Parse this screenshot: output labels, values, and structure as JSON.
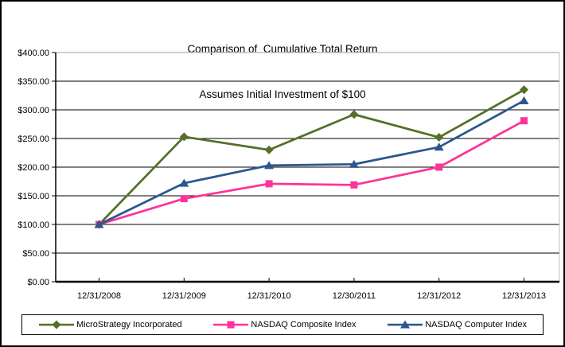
{
  "title": {
    "line1": "Comparison of  Cumulative Total Return",
    "line2": "Assumes Initial Investment of $100"
  },
  "chart_data": {
    "type": "line",
    "categories": [
      "12/31/2008",
      "12/31/2009",
      "12/31/2010",
      "12/30/2011",
      "12/31/2012",
      "12/31/2013"
    ],
    "series": [
      {
        "name": "MicroStrategy Incorporated",
        "color": "#547028",
        "marker": "diamond",
        "values": [
          100,
          253,
          230,
          292,
          252,
          335
        ]
      },
      {
        "name": "NASDAQ Composite Index",
        "color": "#FF3399",
        "marker": "square",
        "values": [
          100,
          145,
          171,
          169,
          200,
          281
        ]
      },
      {
        "name": "NASDAQ Computer Index",
        "color": "#2B578C",
        "marker": "triangle",
        "values": [
          100,
          172,
          203,
          205,
          235,
          316
        ]
      }
    ],
    "title": "Comparison of  Cumulative Total Return — Assumes Initial Investment of $100",
    "xlabel": "",
    "ylabel": "",
    "ylim": [
      0,
      400
    ],
    "y_tick_step": 50,
    "y_tick_labels": [
      "$0.00",
      "$50.00",
      "$100.00",
      "$150.00",
      "$200.00",
      "$250.00",
      "$300.00",
      "$350.00",
      "$400.00"
    ],
    "grid": "horizontal",
    "legend_position": "bottom"
  }
}
